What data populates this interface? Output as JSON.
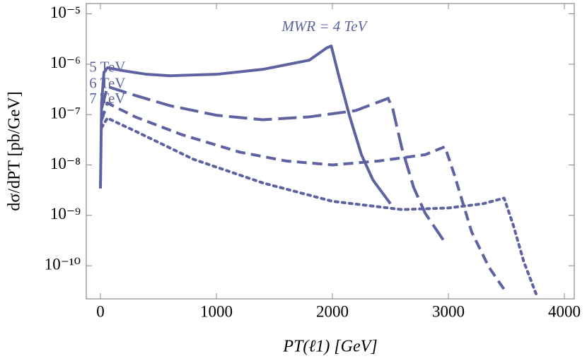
{
  "chart_data": {
    "type": "line",
    "y_axis_label": "dσ/dPT  [pb/GeV]",
    "x_axis_label": "PT(ℓ1)  [GeV]",
    "log_y": true,
    "xlim": [
      -122,
      4085
    ],
    "ylim": [
      2.2e-11,
      1.6e-05
    ],
    "xticks": [
      0,
      1000,
      2000,
      3000,
      4000
    ],
    "yticks": [
      {
        "value": 1e-05,
        "label": "10⁻⁵"
      },
      {
        "value": 1e-06,
        "label": "10⁻⁶"
      },
      {
        "value": 1e-07,
        "label": "10⁻⁷"
      },
      {
        "value": 1e-08,
        "label": "10⁻⁸"
      },
      {
        "value": 1e-09,
        "label": "10⁻⁹"
      },
      {
        "value": 1e-10,
        "label": "10⁻¹⁰"
      }
    ],
    "annotations": [
      "MWR = 4 TeV",
      "5 TeV",
      "6 TeV",
      "7 TeV"
    ],
    "series": [
      {
        "color": "#5e62a0",
        "dash": "solid",
        "x": [
          0,
          10,
          30,
          60,
          200,
          400,
          600,
          1000,
          1400,
          1800,
          1950,
          1990,
          2050,
          2150,
          2250,
          2350,
          2500
        ],
        "values": [
          3.4e-09,
          1.7e-07,
          6.8e-07,
          8.5e-07,
          7.4e-07,
          6.3e-07,
          5.9e-07,
          6.3e-07,
          7.9e-07,
          1.2e-06,
          2.1e-06,
          2.3e-06,
          6.5e-07,
          9e-08,
          1.6e-08,
          5e-09,
          1.7e-09
        ]
      },
      {
        "color": "#5e62a0",
        "dash": "long-dash",
        "x": [
          10,
          60,
          300,
          600,
          1000,
          1400,
          1800,
          2200,
          2480,
          2520,
          2600,
          2700,
          2800,
          2970
        ],
        "values": [
          1.3e-07,
          3.6e-07,
          2.4e-07,
          1.5e-07,
          9.7e-08,
          7.9e-08,
          9e-08,
          1.2e-07,
          2.1e-07,
          1.3e-07,
          2.1e-08,
          3.6e-09,
          1.1e-09,
          2.9e-10
        ]
      },
      {
        "color": "#5e62a0",
        "dash": "dash",
        "x": [
          10,
          60,
          300,
          700,
          1200,
          1600,
          2000,
          2400,
          2800,
          2970,
          3050,
          3200,
          3350,
          3500
        ],
        "values": [
          7.7e-08,
          1.7e-07,
          9e-08,
          4e-08,
          1.8e-08,
          1.2e-08,
          1e-08,
          1.2e-08,
          1.6e-08,
          2.3e-08,
          6.5e-09,
          4.7e-10,
          9.3e-11,
          2.9e-11
        ]
      },
      {
        "color": "#5e62a0",
        "dash": "dot",
        "x": [
          10,
          60,
          300,
          800,
          1400,
          2000,
          2600,
          3000,
          3300,
          3480,
          3560,
          3650,
          3760
        ],
        "values": [
          5.5e-08,
          8.5e-08,
          4.7e-08,
          1.3e-08,
          4.4e-09,
          1.9e-09,
          1.3e-09,
          1.4e-09,
          1.7e-09,
          2.2e-09,
          6.3e-10,
          1.2e-10,
          2.6e-11
        ]
      }
    ]
  }
}
